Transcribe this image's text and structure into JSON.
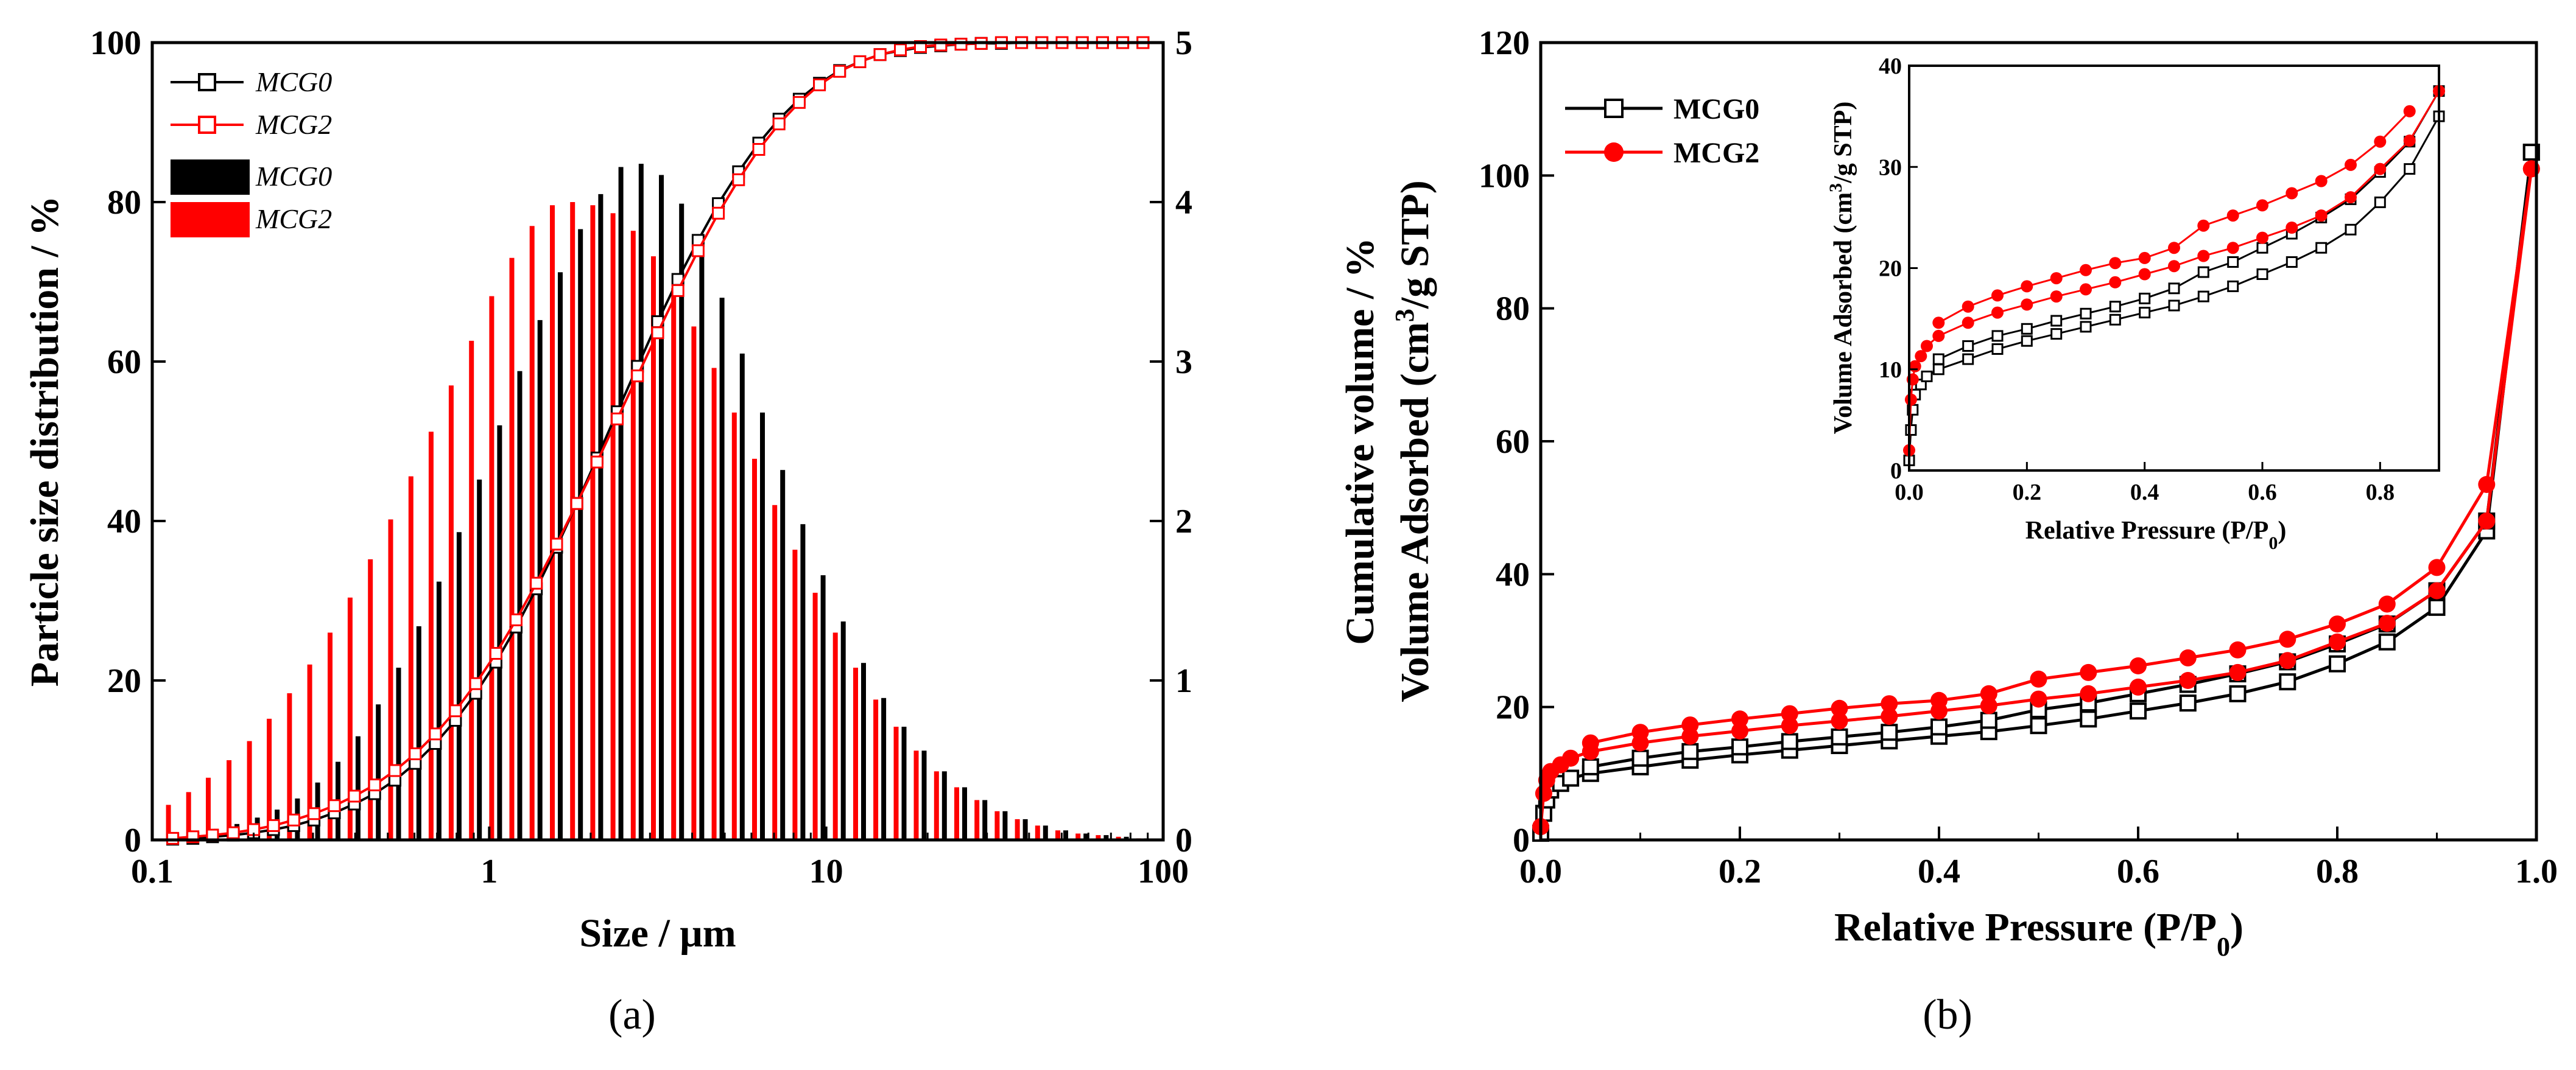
{
  "figure": {
    "caption_a": "(a)",
    "caption_b": "(b)"
  },
  "chart_data": [
    {
      "id": "a",
      "type": "bar",
      "title": "",
      "xlabel": "Size / μm",
      "ylabel_left": "Particle size distribution / %",
      "ylabel_right": "Cumulative volume / %",
      "xscale": "log",
      "xlim": [
        0.1,
        100
      ],
      "ylim_left": [
        0,
        100
      ],
      "ylim_right": [
        0,
        5
      ],
      "x_ticks": [
        "0.1",
        "1",
        "10",
        "100"
      ],
      "y_left_ticks": [
        "0",
        "20",
        "40",
        "60",
        "80",
        "100"
      ],
      "y_right_ticks": [
        "0",
        "1",
        "2",
        "3",
        "4",
        "5"
      ],
      "legend": [
        "MCG0",
        "MCG2",
        "MCG0",
        "MCG2"
      ],
      "legend_position": "top-left",
      "series": [
        {
          "name": "MCG0",
          "kind": "bar",
          "axis": "right",
          "color": "#000000",
          "x": [
            0.115,
            0.132,
            0.151,
            0.174,
            0.2,
            0.229,
            0.263,
            0.302,
            0.347,
            0.398,
            0.457,
            0.525,
            0.603,
            0.692,
            0.794,
            0.912,
            1.047,
            1.202,
            1.38,
            1.585,
            1.82,
            2.089,
            2.399,
            2.754,
            3.162,
            3.631,
            4.169,
            4.786,
            5.495,
            6.31,
            7.244,
            8.318,
            9.55,
            10.96,
            12.59,
            14.45,
            16.6,
            19.05,
            21.88,
            25.12,
            28.84,
            33.11,
            38.02,
            43.65,
            50.12,
            57.54,
            66.07,
            75.86,
            87.1
          ],
          "values": [
            0.03,
            0.05,
            0.07,
            0.1,
            0.14,
            0.19,
            0.26,
            0.36,
            0.49,
            0.65,
            0.85,
            1.08,
            1.34,
            1.62,
            1.93,
            2.26,
            2.6,
            2.94,
            3.26,
            3.56,
            3.83,
            4.05,
            4.22,
            4.24,
            4.17,
            3.99,
            3.72,
            3.4,
            3.05,
            2.68,
            2.32,
            1.98,
            1.66,
            1.37,
            1.11,
            0.89,
            0.71,
            0.56,
            0.43,
            0.33,
            0.25,
            0.18,
            0.13,
            0.09,
            0.06,
            0.04,
            0.03,
            0.02,
            0.01
          ]
        },
        {
          "name": "MCG2",
          "kind": "bar",
          "axis": "right",
          "color": "#ff0000",
          "x": [
            0.115,
            0.132,
            0.151,
            0.174,
            0.2,
            0.229,
            0.263,
            0.302,
            0.347,
            0.398,
            0.457,
            0.525,
            0.603,
            0.692,
            0.794,
            0.912,
            1.047,
            1.202,
            1.38,
            1.585,
            1.82,
            2.089,
            2.399,
            2.754,
            3.162,
            3.631,
            4.169,
            4.786,
            5.495,
            6.31,
            7.244,
            8.318,
            9.55,
            10.96,
            12.59,
            14.45,
            16.6,
            19.05,
            21.88,
            25.12,
            28.84,
            33.11,
            38.02,
            43.65,
            50.12,
            57.54,
            66.07,
            75.86,
            87.1
          ],
          "values": [
            0.22,
            0.3,
            0.39,
            0.5,
            0.62,
            0.76,
            0.92,
            1.1,
            1.3,
            1.52,
            1.76,
            2.01,
            2.28,
            2.56,
            2.85,
            3.13,
            3.41,
            3.65,
            3.85,
            3.98,
            4.0,
            3.98,
            3.93,
            3.82,
            3.66,
            3.46,
            3.22,
            2.96,
            2.68,
            2.39,
            2.1,
            1.82,
            1.55,
            1.3,
            1.08,
            0.88,
            0.71,
            0.56,
            0.43,
            0.33,
            0.25,
            0.18,
            0.13,
            0.09,
            0.06,
            0.04,
            0.03,
            0.02,
            0.01
          ]
        },
        {
          "name": "MCG0",
          "kind": "line",
          "axis": "left",
          "color": "#000000",
          "marker": "open-square",
          "x": [
            0.115,
            0.132,
            0.151,
            0.174,
            0.2,
            0.229,
            0.263,
            0.302,
            0.347,
            0.398,
            0.457,
            0.525,
            0.603,
            0.692,
            0.794,
            0.912,
            1.047,
            1.202,
            1.38,
            1.585,
            1.82,
            2.089,
            2.399,
            2.754,
            3.162,
            3.631,
            4.169,
            4.786,
            5.495,
            6.31,
            7.244,
            8.318,
            9.55,
            10.96,
            12.59,
            14.45,
            16.6,
            19.05,
            21.88,
            25.12,
            28.84,
            33.11,
            38.02,
            43.65,
            50.12,
            57.54,
            66.07,
            75.86,
            87.1
          ],
          "values": [
            0.1,
            0.2,
            0.4,
            0.6,
            0.9,
            1.3,
            1.8,
            2.5,
            3.4,
            4.5,
            5.8,
            7.5,
            9.6,
            12.1,
            15.0,
            18.4,
            22.3,
            26.7,
            31.5,
            36.7,
            42.2,
            47.9,
            53.7,
            59.4,
            65.0,
            70.3,
            75.2,
            79.8,
            83.8,
            87.4,
            90.4,
            92.9,
            94.9,
            96.5,
            97.6,
            98.5,
            99.0,
            99.4,
            99.6,
            99.8,
            99.9,
            99.9,
            100.0,
            100.0,
            100.0,
            100.0,
            100.0,
            100.0,
            100.0
          ]
        },
        {
          "name": "MCG2",
          "kind": "line",
          "axis": "left",
          "color": "#ff0000",
          "marker": "open-square",
          "x": [
            0.115,
            0.132,
            0.151,
            0.174,
            0.2,
            0.229,
            0.263,
            0.302,
            0.347,
            0.398,
            0.457,
            0.525,
            0.603,
            0.692,
            0.794,
            0.912,
            1.047,
            1.202,
            1.38,
            1.585,
            1.82,
            2.089,
            2.399,
            2.754,
            3.162,
            3.631,
            4.169,
            4.786,
            5.495,
            6.31,
            7.244,
            8.318,
            9.55,
            10.96,
            12.59,
            14.45,
            16.6,
            19.05,
            21.88,
            25.12,
            28.84,
            33.11,
            38.02,
            43.65,
            50.12,
            57.54,
            66.07,
            75.86,
            87.1
          ],
          "values": [
            0.2,
            0.4,
            0.6,
            0.9,
            1.3,
            1.8,
            2.5,
            3.3,
            4.3,
            5.5,
            6.9,
            8.7,
            10.8,
            13.3,
            16.2,
            19.6,
            23.4,
            27.6,
            32.2,
            37.1,
            42.2,
            47.4,
            52.8,
            58.2,
            63.6,
            68.9,
            73.9,
            78.6,
            82.8,
            86.6,
            89.8,
            92.5,
            94.7,
            96.4,
            97.6,
            98.5,
            99.1,
            99.5,
            99.7,
            99.8,
            99.9,
            100.0,
            100.0,
            100.0,
            100.0,
            100.0,
            100.0,
            100.0,
            100.0
          ]
        }
      ]
    },
    {
      "id": "b",
      "type": "line",
      "title": "",
      "xlabel": "Relative Pressure (P/P",
      "xlabel_sub": "0",
      "xlabel_end": ")",
      "ylabel": "Volume Adsorbed (cm",
      "ylabel_sup": "3",
      "ylabel_end": "/g STP)",
      "xlim": [
        0,
        1.0
      ],
      "ylim": [
        0,
        120
      ],
      "x_ticks": [
        "0.0",
        "0.2",
        "0.4",
        "0.6",
        "0.8",
        "1.0"
      ],
      "y_ticks": [
        "0",
        "20",
        "40",
        "60",
        "80",
        "100",
        "120"
      ],
      "legend": [
        "MCG0",
        "MCG2"
      ],
      "legend_position": "top-left",
      "series": [
        {
          "name": "MCG0",
          "color": "#000000",
          "marker": "open-square",
          "branch": "adsorption",
          "x": [
            0.0,
            0.003,
            0.006,
            0.01,
            0.02,
            0.03,
            0.05,
            0.1,
            0.15,
            0.2,
            0.25,
            0.3,
            0.35,
            0.4,
            0.45,
            0.5,
            0.55,
            0.6,
            0.65,
            0.7,
            0.75,
            0.8,
            0.85,
            0.9,
            0.95,
            0.995
          ],
          "values": [
            1.0,
            4.0,
            6.0,
            7.5,
            8.5,
            9.3,
            10.0,
            11.0,
            12.0,
            12.8,
            13.5,
            14.2,
            14.9,
            15.6,
            16.3,
            17.2,
            18.2,
            19.4,
            20.6,
            22.0,
            23.8,
            26.5,
            29.8,
            35.0,
            46.5,
            103.5
          ]
        },
        {
          "name": "MCG0",
          "color": "#000000",
          "marker": "open-square",
          "branch": "desorption",
          "x": [
            0.995,
            0.95,
            0.9,
            0.85,
            0.8,
            0.75,
            0.7,
            0.65,
            0.6,
            0.55,
            0.5,
            0.45,
            0.4,
            0.35,
            0.3,
            0.25,
            0.2,
            0.15,
            0.1,
            0.05
          ],
          "values": [
            103.5,
            48.0,
            37.5,
            32.5,
            29.5,
            26.8,
            25.0,
            23.4,
            22.0,
            20.6,
            19.6,
            18.0,
            17.0,
            16.2,
            15.5,
            14.8,
            14.0,
            13.3,
            12.3,
            11.0
          ]
        },
        {
          "name": "MCG2",
          "color": "#ff0000",
          "marker": "filled-circle",
          "branch": "adsorption",
          "x": [
            0.0,
            0.003,
            0.006,
            0.01,
            0.02,
            0.03,
            0.05,
            0.1,
            0.15,
            0.2,
            0.25,
            0.3,
            0.35,
            0.4,
            0.45,
            0.5,
            0.55,
            0.6,
            0.65,
            0.7,
            0.75,
            0.8,
            0.85,
            0.9,
            0.95,
            0.995
          ],
          "values": [
            2.0,
            7.0,
            9.0,
            10.3,
            11.3,
            12.3,
            13.3,
            14.6,
            15.6,
            16.4,
            17.2,
            17.9,
            18.6,
            19.4,
            20.2,
            21.2,
            22.0,
            23.0,
            24.0,
            25.2,
            27.0,
            29.8,
            32.6,
            37.5,
            48.0,
            101.0
          ]
        },
        {
          "name": "MCG2",
          "color": "#ff0000",
          "marker": "filled-circle",
          "branch": "desorption",
          "x": [
            0.995,
            0.95,
            0.9,
            0.85,
            0.8,
            0.75,
            0.7,
            0.65,
            0.6,
            0.55,
            0.5,
            0.45,
            0.4,
            0.35,
            0.3,
            0.25,
            0.2,
            0.15,
            0.1,
            0.05
          ],
          "values": [
            101.0,
            53.5,
            41.0,
            35.5,
            32.5,
            30.2,
            28.6,
            27.4,
            26.2,
            25.2,
            24.2,
            22.0,
            21.0,
            20.5,
            19.8,
            19.0,
            18.2,
            17.3,
            16.2,
            14.6
          ]
        }
      ],
      "inset": {
        "xlabel": "Relative Pressure (P/P",
        "xlabel_sub": "0",
        "xlabel_end": ")",
        "ylabel": "Volume Adsorbed (cm",
        "ylabel_sup": "3",
        "ylabel_end": "/g STP)",
        "xlim": [
          0,
          0.9
        ],
        "ylim": [
          0,
          40
        ],
        "x_ticks": [
          "0.0",
          "0.2",
          "0.4",
          "0.6",
          "0.8"
        ],
        "y_ticks": [
          "0",
          "10",
          "20",
          "30",
          "40"
        ]
      }
    }
  ]
}
